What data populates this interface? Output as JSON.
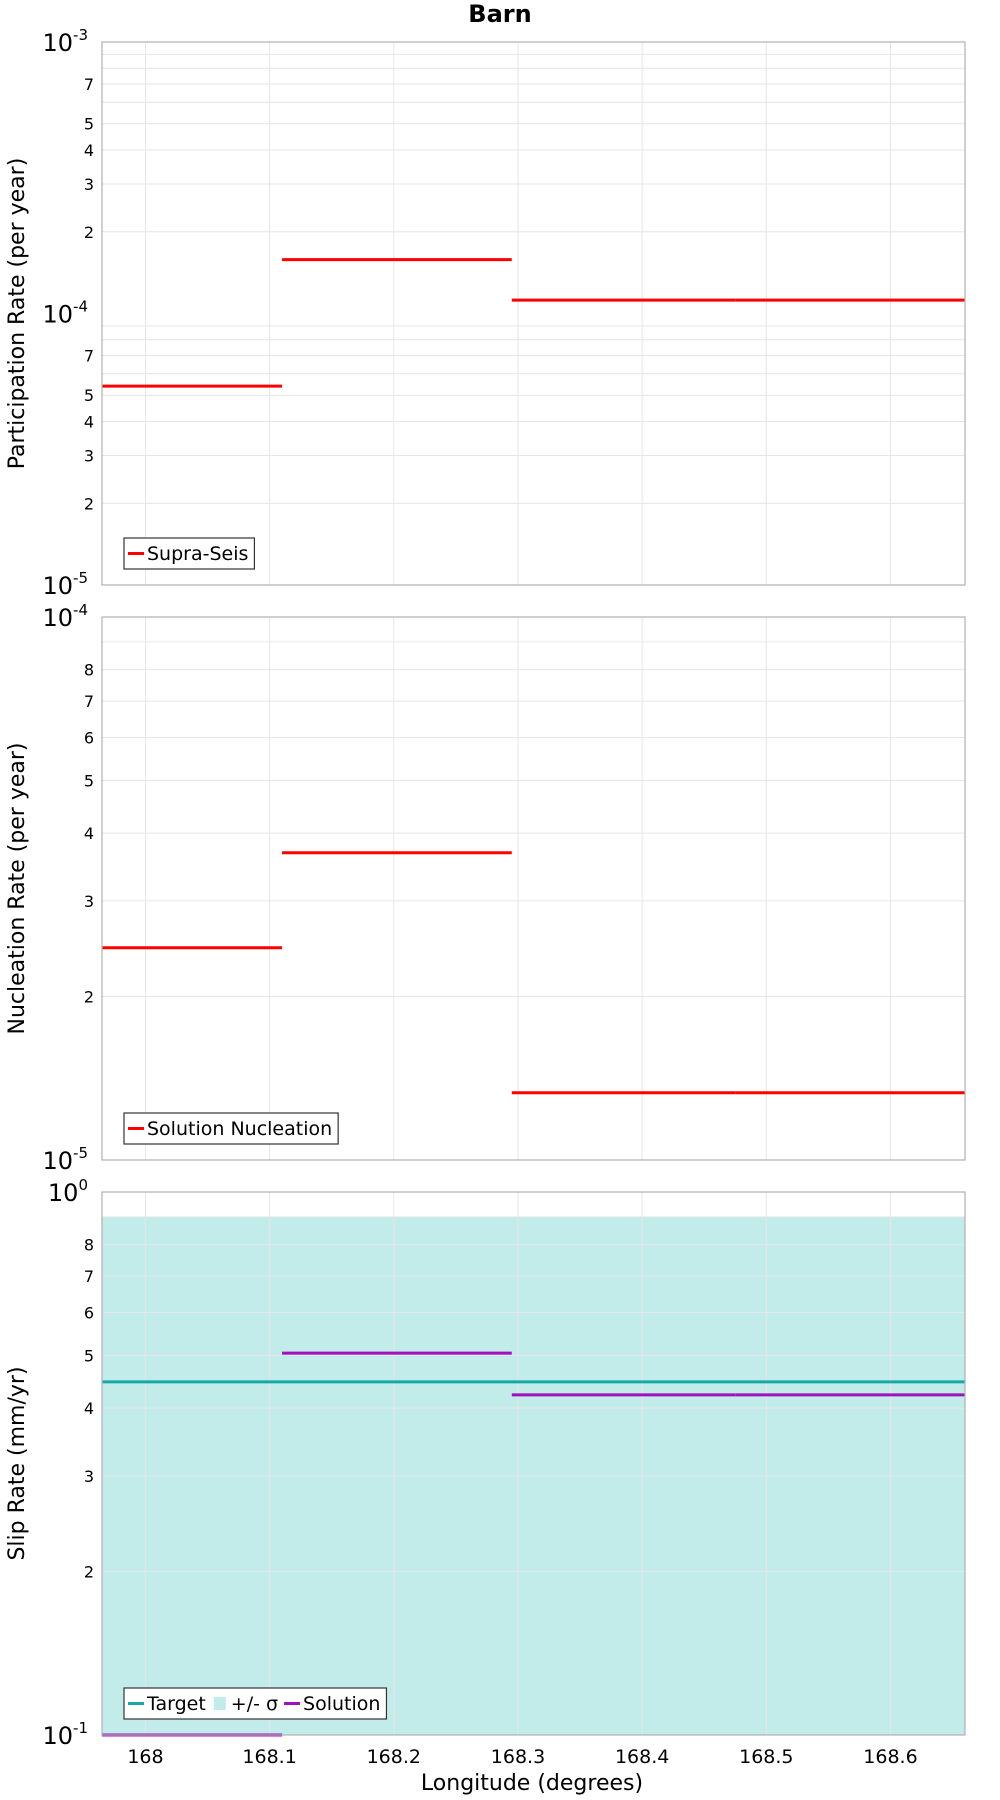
{
  "colors": {
    "supra_seis": "#ff0000",
    "nucleation": "#ff0000",
    "target": "#17a8a8",
    "sigma_band": "#c2ecea",
    "solution": "#a010c0"
  },
  "chart_data": [
    {
      "type": "line",
      "title": "Barn",
      "ylabel": "Participation Rate (per year)",
      "xlabel": "",
      "yscale": "log",
      "ylim": [
        1e-05,
        0.001
      ],
      "xlim": [
        167.965,
        168.66
      ],
      "xticks": [
        168,
        168.1,
        168.2,
        168.3,
        168.4,
        168.5,
        168.6
      ],
      "grid": true,
      "legend_position": "bottom-left",
      "series": [
        {
          "name": "Supra-Seis",
          "color_key": "supra_seis",
          "segments": [
            {
              "x0": 167.965,
              "x1": 168.11,
              "y": 5.4e-05
            },
            {
              "x0": 168.11,
              "x1": 168.295,
              "y": 0.000158
            },
            {
              "x0": 168.295,
              "x1": 168.475,
              "y": 0.000112
            },
            {
              "x0": 168.475,
              "x1": 168.66,
              "y": 0.000112
            }
          ]
        }
      ]
    },
    {
      "type": "line",
      "title": "",
      "ylabel": "Nucleation Rate (per year)",
      "xlabel": "",
      "yscale": "log",
      "ylim": [
        1e-05,
        0.0001
      ],
      "xlim": [
        167.965,
        168.66
      ],
      "xticks": [
        168,
        168.1,
        168.2,
        168.3,
        168.4,
        168.5,
        168.6
      ],
      "grid": true,
      "legend_position": "bottom-left",
      "series": [
        {
          "name": "Solution Nucleation",
          "color_key": "nucleation",
          "segments": [
            {
              "x0": 167.965,
              "x1": 168.11,
              "y": 2.46e-05
            },
            {
              "x0": 168.11,
              "x1": 168.295,
              "y": 3.68e-05
            },
            {
              "x0": 168.295,
              "x1": 168.475,
              "y": 1.33e-05
            },
            {
              "x0": 168.475,
              "x1": 168.66,
              "y": 1.33e-05
            }
          ]
        }
      ]
    },
    {
      "type": "line",
      "title": "",
      "ylabel": "Slip Rate (mm/yr)",
      "xlabel": "Longitude (degrees)",
      "yscale": "log",
      "ylim": [
        0.1,
        1
      ],
      "xlim": [
        167.965,
        168.66
      ],
      "xticks": [
        168,
        168.1,
        168.2,
        168.3,
        168.4,
        168.5,
        168.6
      ],
      "grid": true,
      "legend_position": "bottom-left",
      "band": {
        "name": "+/- σ",
        "color_key": "sigma_band",
        "y_low": 0.1,
        "y_high": 0.9
      },
      "series": [
        {
          "name": "Target",
          "color_key": "target",
          "segments": [
            {
              "x0": 167.965,
              "x1": 168.66,
              "y": 0.447
            }
          ]
        },
        {
          "name": "Solution",
          "color_key": "solution",
          "segments": [
            {
              "x0": 167.965,
              "x1": 168.11,
              "y": 0.1
            },
            {
              "x0": 168.11,
              "x1": 168.295,
              "y": 0.505
            },
            {
              "x0": 168.295,
              "x1": 168.475,
              "y": 0.423
            },
            {
              "x0": 168.475,
              "x1": 168.66,
              "y": 0.423
            }
          ]
        }
      ]
    }
  ]
}
